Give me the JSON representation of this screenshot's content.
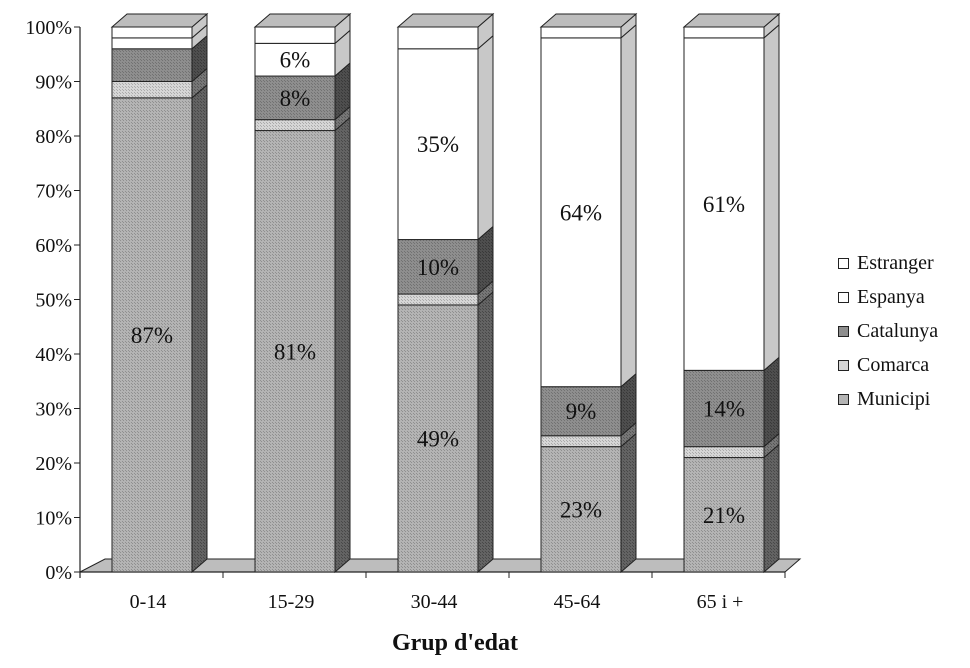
{
  "chart_data": {
    "type": "bar",
    "stacked": true,
    "style": "3d",
    "xlabel": "Grup d'edat",
    "ylabel": "",
    "ylim": [
      0,
      100
    ],
    "yticks": [
      "0%",
      "10%",
      "20%",
      "30%",
      "40%",
      "50%",
      "60%",
      "70%",
      "80%",
      "90%",
      "100%"
    ],
    "categories": [
      "0-14",
      "15-29",
      "30-44",
      "45-64",
      "65 i +"
    ],
    "series": [
      {
        "name": "Municipi",
        "values": [
          87,
          81,
          49,
          23,
          21
        ],
        "labels": [
          "87%",
          "81%",
          "49%",
          "23%",
          "21%"
        ],
        "color": "#b4b4b4"
      },
      {
        "name": "Comarca",
        "values": [
          3,
          2,
          2,
          2,
          2
        ],
        "labels": [
          "",
          "",
          "",
          "",
          ""
        ],
        "color": "#d6d6d6"
      },
      {
        "name": "Catalunya",
        "values": [
          6,
          8,
          10,
          9,
          14
        ],
        "labels": [
          "",
          "8%",
          "10%",
          "9%",
          "14%"
        ],
        "color": "#8e8e8e"
      },
      {
        "name": "Espanya",
        "values": [
          2,
          6,
          35,
          64,
          61
        ],
        "labels": [
          "",
          "6%",
          "35%",
          "64%",
          "61%"
        ],
        "color": "#ffffff"
      },
      {
        "name": "Estranger",
        "values": [
          2,
          3,
          4,
          2,
          2
        ],
        "labels": [
          "",
          "",
          "",
          "",
          ""
        ],
        "color": "#ffffff"
      }
    ],
    "legend": {
      "position": "right",
      "order": [
        "Estranger",
        "Espanya",
        "Catalunya",
        "Comarca",
        "Municipi"
      ]
    },
    "grid": false
  }
}
